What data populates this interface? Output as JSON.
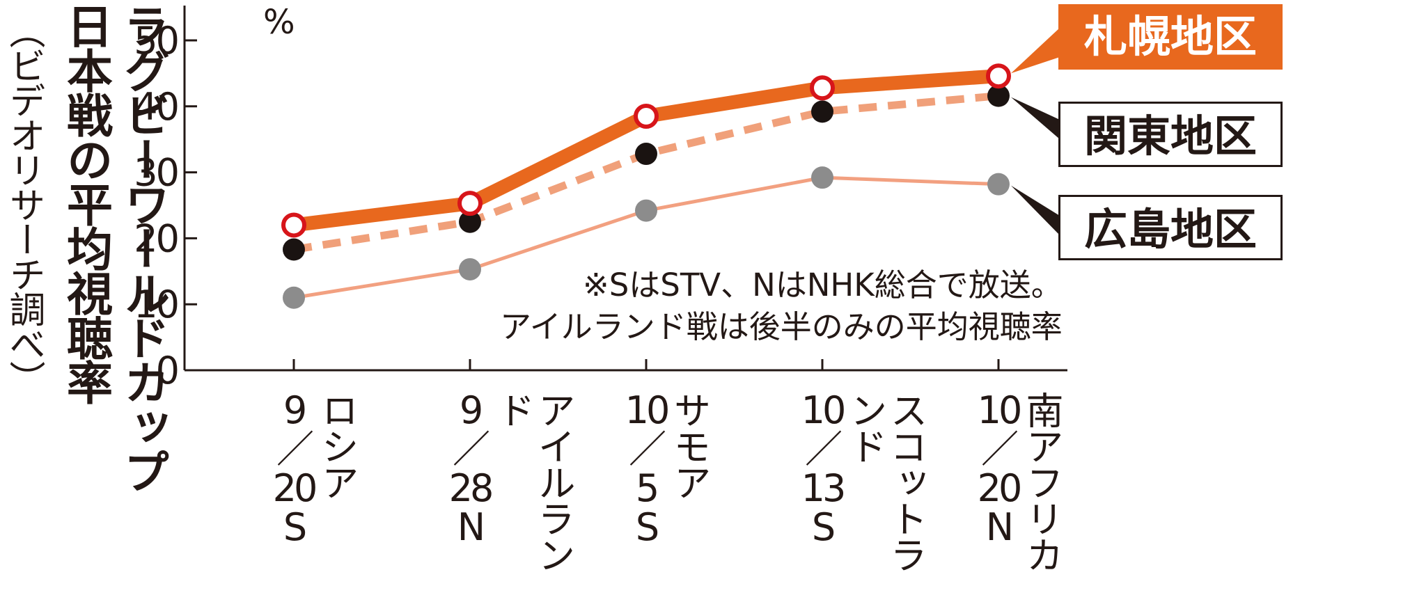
{
  "title": {
    "line1": "ラグビーワールドカップ",
    "line2": "日本戦の平均視聴率",
    "line3": "（ビデオリサーチ調べ）"
  },
  "unit": "%",
  "note": {
    "line1": "※SはSTV、NはNHK総合で放送。",
    "line2": "アイルランド戦は後半のみの平均視聴率"
  },
  "colors": {
    "sapporo": "#E8681E",
    "kanto": "#F0A07A",
    "hiroshima": "#F2A080",
    "axis": "#231815",
    "marker_ring": "#D7151A",
    "kanto_marker": "#1A1311",
    "hiroshima_marker": "#8C8C8C"
  },
  "chart_data": {
    "type": "line",
    "categories": [
      {
        "date": "9/20",
        "network": "S",
        "opponent": "ロシア"
      },
      {
        "date": "9/28",
        "network": "N",
        "opponent": "アイルランド"
      },
      {
        "date": "10/5",
        "network": "S",
        "opponent": "サモア"
      },
      {
        "date": "10/13",
        "network": "S",
        "opponent": "スコットランド"
      },
      {
        "date": "10/20",
        "network": "N",
        "opponent": "南アフリカ"
      }
    ],
    "series": [
      {
        "name": "札幌地区",
        "values": [
          22.0,
          25.3,
          38.5,
          42.8,
          44.6
        ],
        "style": "thick-solid",
        "marker": "open-circle-red"
      },
      {
        "name": "関東地区",
        "values": [
          18.3,
          22.5,
          32.8,
          39.2,
          41.6
        ],
        "style": "dashed",
        "marker": "filled-black"
      },
      {
        "name": "広島地区",
        "values": [
          11.0,
          15.3,
          24.2,
          29.2,
          28.2
        ],
        "style": "thin-solid",
        "marker": "filled-gray"
      }
    ],
    "ylim": [
      0,
      50
    ],
    "yticks": [
      "0",
      "10",
      "20",
      "30",
      "40",
      "50"
    ],
    "grid": false,
    "legend": "right, boxed labels with pointer"
  }
}
